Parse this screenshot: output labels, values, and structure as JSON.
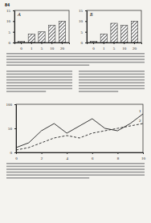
{
  "page_number": "84",
  "chart_data": [
    {
      "type": "bar",
      "title": "А",
      "categories": [
        "0",
        "1",
        "5",
        "10",
        "20"
      ],
      "values": [
        0.5,
        4,
        5,
        8,
        10
      ],
      "color": "#444444",
      "ylim": [
        0,
        15
      ],
      "yticks": [
        0,
        5,
        10,
        15
      ]
    },
    {
      "type": "bar",
      "title": "Б",
      "categories": [
        "0",
        "1",
        "5",
        "10",
        "20"
      ],
      "values": [
        0.5,
        4,
        9,
        8,
        10
      ],
      "color": "#444444",
      "ylim": [
        0,
        15
      ],
      "yticks": [
        0,
        5,
        10,
        15
      ]
    },
    {
      "type": "line",
      "x": [
        0,
        1,
        2,
        3,
        4,
        5,
        6,
        7,
        8,
        9,
        10
      ],
      "series": [
        {
          "name": "1",
          "color": "#222222",
          "line_style": "solid",
          "values": [
            10,
            20,
            45,
            60,
            40,
            55,
            70,
            50,
            45,
            60,
            80
          ]
        },
        {
          "name": "2",
          "color": "#222222",
          "line_style": "dashed",
          "values": [
            5,
            10,
            20,
            30,
            35,
            30,
            40,
            45,
            50,
            55,
            60
          ]
        }
      ],
      "xlim": [
        0,
        10
      ],
      "xticks": [
        0,
        2,
        4,
        6,
        8,
        10
      ],
      "ylim": [
        0,
        100
      ],
      "yticks": [
        0,
        50,
        100
      ]
    }
  ]
}
